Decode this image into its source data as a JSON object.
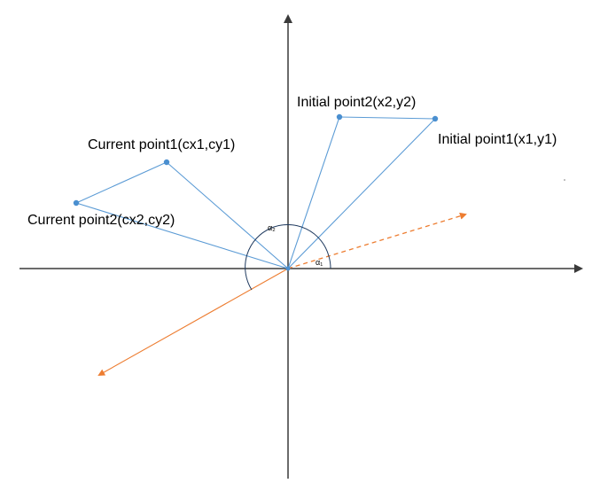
{
  "labels": {
    "initial_point1": "Initial point1(x1,y1)",
    "initial_point2": "Initial point2(x2,y2)",
    "current_point1": "Current point1(cx1,cy1)",
    "current_point2": "Current point2(cx2,cy2)",
    "alpha1": "α₁",
    "alpha2": "α₂"
  },
  "colors": {
    "axis": "#3a3a3a",
    "line": "#5b9bd5",
    "point": "#4a8fd0",
    "arrow": "#ed7d31",
    "arc": "#1f3a5f"
  }
}
